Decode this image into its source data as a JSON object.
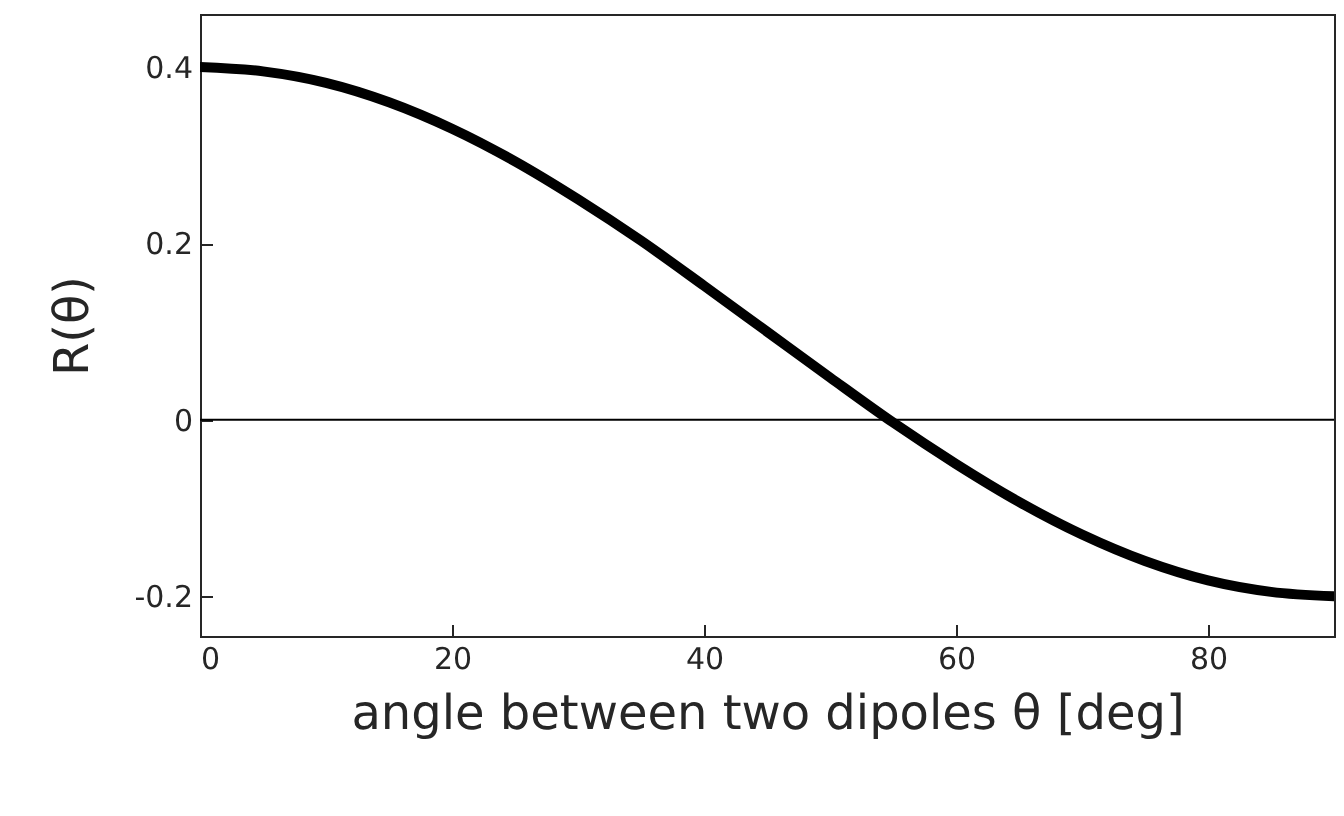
{
  "chart_data": {
    "type": "line",
    "xlabel": "angle between two dipoles θ [deg]",
    "ylabel": "R(θ)",
    "x": [
      0,
      5,
      10,
      15,
      20,
      25,
      30,
      35,
      40,
      45,
      50,
      55,
      60,
      65,
      70,
      75,
      80,
      85,
      90
    ],
    "series": [
      {
        "color": "#000000",
        "values": [
          0.4,
          0.395,
          0.382,
          0.36,
          0.33,
          0.293,
          0.25,
          0.203,
          0.152,
          0.1,
          0.048,
          -0.003,
          -0.05,
          -0.093,
          -0.13,
          -0.16,
          -0.182,
          -0.195,
          -0.2
        ]
      }
    ],
    "xlim": [
      0,
      90
    ],
    "xticks": [
      0,
      20,
      40,
      60,
      80
    ],
    "ylim": [
      -0.245,
      0.46
    ],
    "yticks": [
      -0.2,
      0,
      0.2,
      0.4
    ],
    "ref_lines": [
      {
        "axis": "y",
        "value": 0,
        "color": "#000000"
      }
    ],
    "grid": false,
    "marker": "none",
    "line_style": "solid"
  }
}
